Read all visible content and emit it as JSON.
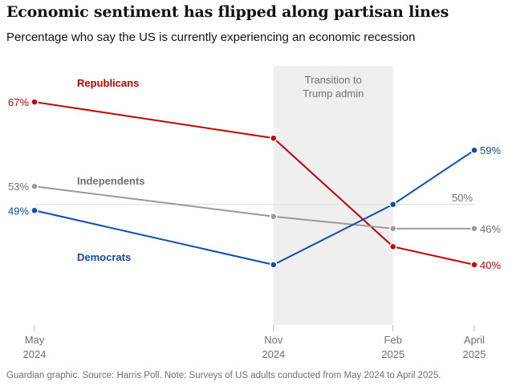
{
  "title": "Economic sentiment has flipped along partisan lines",
  "subtitle": "Percentage who say the US is currently experiencing an economic recession",
  "footer": "Guardian graphic. Source: Harris Poll. Note: Surveys of US adults conducted from May 2024 to April 2025.",
  "chart_data": {
    "type": "line",
    "title": "Economic sentiment has flipped along partisan lines",
    "subtitle": "Percentage who say the US is currently experiencing an economic recession",
    "x": [
      {
        "line1": "May",
        "line2": "2024"
      },
      {
        "line1": "Nov",
        "line2": "2024"
      },
      {
        "line1": "Feb",
        "line2": "2025"
      },
      {
        "line1": "April",
        "line2": "2025"
      }
    ],
    "x_dates": [
      2024.33,
      2024.83,
      2025.08,
      2025.25
    ],
    "ylim": [
      30,
      73
    ],
    "reference_line": {
      "value": 50,
      "label": "50%"
    },
    "shaded_region": {
      "from_index": 1,
      "to_index": 2,
      "label_line1": "Transition to",
      "label_line2": "Trump admin"
    },
    "series": [
      {
        "name": "Republicans",
        "color": "#c70000",
        "values": [
          67,
          61,
          43,
          40
        ],
        "start_label": "67%",
        "end_label": "40%"
      },
      {
        "name": "Independents",
        "color": "#999999",
        "label_color": "#707070",
        "values": [
          53,
          48,
          46,
          46
        ],
        "start_label": "53%",
        "end_label": "46%"
      },
      {
        "name": "Democrats",
        "color": "#0f4ea8",
        "values": [
          49,
          40,
          50,
          59
        ],
        "start_label": "49%",
        "end_label": "59%"
      }
    ]
  }
}
